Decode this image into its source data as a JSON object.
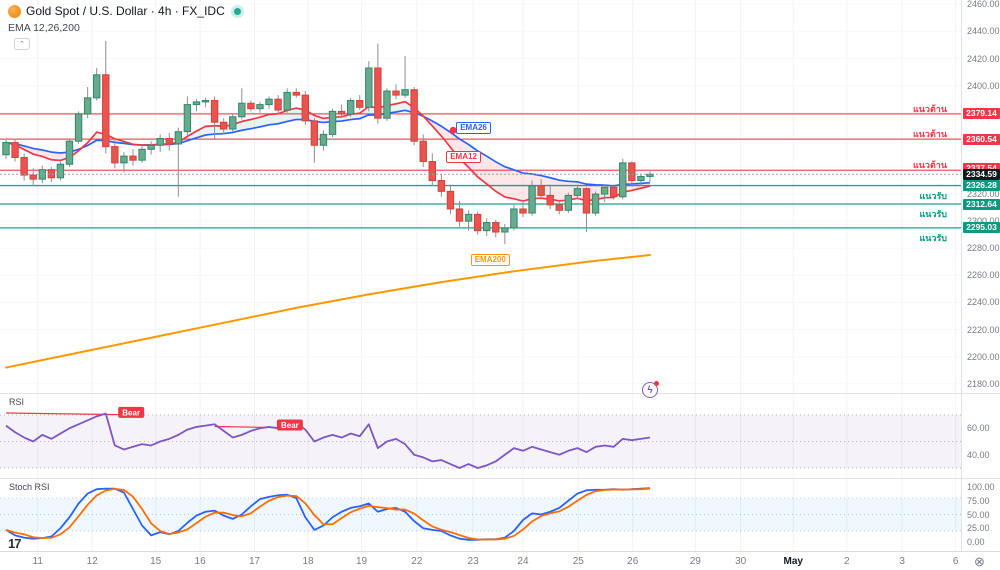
{
  "header": {
    "title_full": "Gold Spot / U.S. Dollar · 4h · FX_IDC",
    "symbol": "Gold Spot / U.S. Dollar",
    "interval": "4h",
    "exchange": "FX_IDC",
    "market_status": "open",
    "indicator_label": "EMA 12,26,200",
    "collapse_glyph": "⌃"
  },
  "colors": {
    "up_fill": "#66ab8e",
    "up_border": "#33876b",
    "down_fill": "#e8544e",
    "down_border": "#d7413b",
    "wick": "#8b8f98",
    "resistance": "#f23645",
    "support": "#089981",
    "ema12": "#f23645",
    "ema26": "#2962ff",
    "ema200": "#ff9800",
    "rsi_line": "#7e57c2",
    "stoch_k": "#2962ff",
    "stoch_d": "#ff6d00",
    "last_price_bg": "#16181e",
    "grid_v": "#f0f2f5",
    "grid_h": "#f6f7f9",
    "cloud_bull": "rgba(8,153,129,0.10)",
    "cloud_bear": "rgba(242,54,69,0.12)"
  },
  "levels": {
    "resistance": [
      {
        "price": 2379.14,
        "label": "แนวต้าน"
      },
      {
        "price": 2360.54,
        "label": "แนวต้าน"
      },
      {
        "price": 2337.54,
        "label": "แนวต้าน"
      }
    ],
    "support": [
      {
        "price": 2326.28,
        "label": "แนวรับ"
      },
      {
        "price": 2312.64,
        "label": "แนวรับ"
      },
      {
        "price": 2295.03,
        "label": "แนวรับ"
      }
    ],
    "last_price": 2334.59
  },
  "chart_data": {
    "type": "candlestick",
    "title": "Gold Spot / U.S. Dollar · 4h · FX_IDC",
    "y_axis": {
      "min": 2180,
      "max": 2460,
      "step": 20
    },
    "x_labels": [
      [
        "11",
        3.5
      ],
      [
        "12",
        9.5
      ],
      [
        "15",
        16.5
      ],
      [
        "16",
        21.4
      ],
      [
        "17",
        27.4
      ],
      [
        "18",
        33.3
      ],
      [
        "19",
        39.2
      ],
      [
        "22",
        45.3
      ],
      [
        "23",
        51.5
      ],
      [
        "24",
        57.0
      ],
      [
        "25",
        63.1
      ],
      [
        "26",
        69.1
      ],
      [
        "29",
        76.0
      ],
      [
        "30",
        81.0
      ],
      [
        "May",
        86.8
      ],
      [
        "2",
        92.7
      ],
      [
        "3",
        98.8
      ],
      [
        "6",
        104.7
      ]
    ],
    "candles": [
      [
        2349,
        2360,
        2346,
        2358
      ],
      [
        2358,
        2361,
        2344,
        2347
      ],
      [
        2347,
        2350,
        2330,
        2334
      ],
      [
        2334,
        2339,
        2326,
        2331
      ],
      [
        2331,
        2341,
        2328,
        2338
      ],
      [
        2338,
        2340,
        2329,
        2332
      ],
      [
        2332,
        2344,
        2330,
        2342
      ],
      [
        2342,
        2361,
        2340,
        2359
      ],
      [
        2359,
        2381,
        2357,
        2379
      ],
      [
        2379,
        2399,
        2376,
        2391
      ],
      [
        2391,
        2413,
        2389,
        2408
      ],
      [
        2408,
        2433,
        2350,
        2355
      ],
      [
        2355,
        2361,
        2339,
        2343
      ],
      [
        2343,
        2351,
        2336,
        2348
      ],
      [
        2348,
        2353,
        2341,
        2345
      ],
      [
        2345,
        2356,
        2343,
        2353
      ],
      [
        2353,
        2359,
        2349,
        2356
      ],
      [
        2356,
        2364,
        2351,
        2361
      ],
      [
        2361,
        2365,
        2352,
        2357
      ],
      [
        2357,
        2369,
        2318,
        2366
      ],
      [
        2366,
        2392,
        2363,
        2386
      ],
      [
        2386,
        2390,
        2381,
        2388
      ],
      [
        2388,
        2391,
        2384,
        2389
      ],
      [
        2389,
        2392,
        2361,
        2373
      ],
      [
        2373,
        2376,
        2364,
        2368
      ],
      [
        2368,
        2379,
        2366,
        2377
      ],
      [
        2377,
        2398,
        2375,
        2387
      ],
      [
        2387,
        2389,
        2381,
        2383
      ],
      [
        2383,
        2388,
        2380,
        2386
      ],
      [
        2386,
        2392,
        2383,
        2390
      ],
      [
        2390,
        2393,
        2379,
        2382
      ],
      [
        2382,
        2398,
        2380,
        2395
      ],
      [
        2395,
        2398,
        2391,
        2393
      ],
      [
        2393,
        2396,
        2371,
        2374
      ],
      [
        2374,
        2376,
        2343,
        2356
      ],
      [
        2356,
        2367,
        2352,
        2364
      ],
      [
        2364,
        2383,
        2362,
        2381
      ],
      [
        2381,
        2386,
        2377,
        2379
      ],
      [
        2379,
        2391,
        2377,
        2389
      ],
      [
        2389,
        2393,
        2382,
        2384
      ],
      [
        2384,
        2418,
        2381,
        2413
      ],
      [
        2413,
        2431,
        2372,
        2376
      ],
      [
        2376,
        2398,
        2374,
        2396
      ],
      [
        2396,
        2401,
        2390,
        2393
      ],
      [
        2393,
        2422,
        2391,
        2397
      ],
      [
        2397,
        2399,
        2356,
        2359
      ],
      [
        2359,
        2364,
        2340,
        2344
      ],
      [
        2344,
        2350,
        2326,
        2330
      ],
      [
        2330,
        2335,
        2318,
        2322
      ],
      [
        2322,
        2327,
        2305,
        2309
      ],
      [
        2309,
        2315,
        2296,
        2300
      ],
      [
        2300,
        2308,
        2293,
        2305
      ],
      [
        2305,
        2307,
        2290,
        2293
      ],
      [
        2293,
        2302,
        2289,
        2299
      ],
      [
        2299,
        2301,
        2288,
        2292
      ],
      [
        2292,
        2298,
        2283,
        2295
      ],
      [
        2295,
        2312,
        2293,
        2309
      ],
      [
        2309,
        2315,
        2303,
        2306
      ],
      [
        2306,
        2330,
        2304,
        2326
      ],
      [
        2326,
        2331,
        2316,
        2319
      ],
      [
        2319,
        2327,
        2309,
        2312
      ],
      [
        2312,
        2315,
        2305,
        2308
      ],
      [
        2308,
        2321,
        2306,
        2319
      ],
      [
        2319,
        2327,
        2316,
        2324
      ],
      [
        2324,
        2325,
        2292,
        2306
      ],
      [
        2306,
        2322,
        2304,
        2320
      ],
      [
        2320,
        2327,
        2314,
        2325
      ],
      [
        2325,
        2327,
        2316,
        2318
      ],
      [
        2318,
        2346,
        2316,
        2343
      ],
      [
        2343,
        2344,
        2327,
        2330
      ],
      [
        2330,
        2335,
        2326,
        2333
      ],
      [
        2333,
        2338,
        2329,
        2334.59
      ]
    ],
    "ema_periods": [
      12,
      26
    ],
    "ema200_points": [
      [
        0,
        2192
      ],
      [
        8,
        2203
      ],
      [
        16,
        2214
      ],
      [
        24,
        2225
      ],
      [
        32,
        2236
      ],
      [
        40,
        2246
      ],
      [
        48,
        2255
      ],
      [
        56,
        2263
      ],
      [
        64,
        2270
      ],
      [
        71,
        2275
      ]
    ],
    "callouts": [
      {
        "text": "EMA26",
        "bar": 51.4,
        "price": 2369,
        "color": "#2962ff"
      },
      {
        "text": "EMA12",
        "bar": 50.3,
        "price": 2347,
        "color": "#f23645"
      },
      {
        "text": "EMA200",
        "bar": 53.0,
        "price": 2271,
        "color": "#ff9800"
      }
    ],
    "annotations": {
      "red_dot": {
        "bar": 49.3,
        "price": 2367
      }
    },
    "rsi": {
      "label": "RSI",
      "band": [
        30,
        70
      ],
      "mid": 50,
      "axis_ticks": [
        "60.00",
        "40.00"
      ],
      "axis_tick_values": [
        60,
        40
      ],
      "values": [
        62,
        57,
        53,
        50,
        55,
        52,
        56,
        60,
        63,
        66,
        69,
        71,
        47,
        44,
        46,
        48,
        47,
        50,
        52,
        55,
        59,
        61,
        62,
        63,
        58,
        53,
        55,
        58,
        60,
        61,
        60,
        63,
        64,
        59,
        50,
        53,
        55,
        53,
        56,
        54,
        63,
        45,
        50,
        52,
        48,
        40,
        38,
        35,
        36,
        33,
        30,
        33,
        30,
        32,
        35,
        40,
        45,
        43,
        46,
        44,
        42,
        40,
        43,
        45,
        42,
        46,
        47,
        46,
        52,
        51,
        52,
        53
      ],
      "trendlines": [
        {
          "from": [
            0,
            71.5
          ],
          "to": [
            13.5,
            70.2
          ],
          "badge": "Bear",
          "badge_at": [
            13.8,
            72.0
          ]
        },
        {
          "from": [
            23,
            61.3
          ],
          "to": [
            32.5,
            60.2
          ],
          "badge": "Bear",
          "badge_at": [
            31.3,
            62.5
          ]
        }
      ]
    },
    "stoch": {
      "label": "Stoch RSI",
      "band": [
        20,
        80
      ],
      "mid": 50,
      "axis_ticks": [
        "100.00",
        "75.00",
        "50.00",
        "25.00",
        "0.00"
      ],
      "axis_tick_values": [
        100,
        75,
        50,
        25,
        0
      ],
      "k": [
        22,
        12,
        8,
        6,
        7,
        10,
        25,
        45,
        70,
        88,
        96,
        97,
        97,
        90,
        60,
        30,
        12,
        18,
        14,
        20,
        35,
        48,
        55,
        57,
        48,
        42,
        50,
        65,
        78,
        82,
        85,
        86,
        80,
        45,
        22,
        30,
        45,
        55,
        62,
        65,
        70,
        55,
        60,
        62,
        55,
        38,
        25,
        22,
        20,
        12,
        6,
        4,
        4,
        5,
        5,
        8,
        20,
        40,
        52,
        50,
        55,
        62,
        75,
        88,
        94,
        95,
        95,
        96,
        95,
        96,
        97,
        98
      ]
    }
  },
  "footer_icons": {
    "timezone_glyph": "⊗",
    "spark_glyph": "ϟ",
    "tv_logo": "17"
  }
}
